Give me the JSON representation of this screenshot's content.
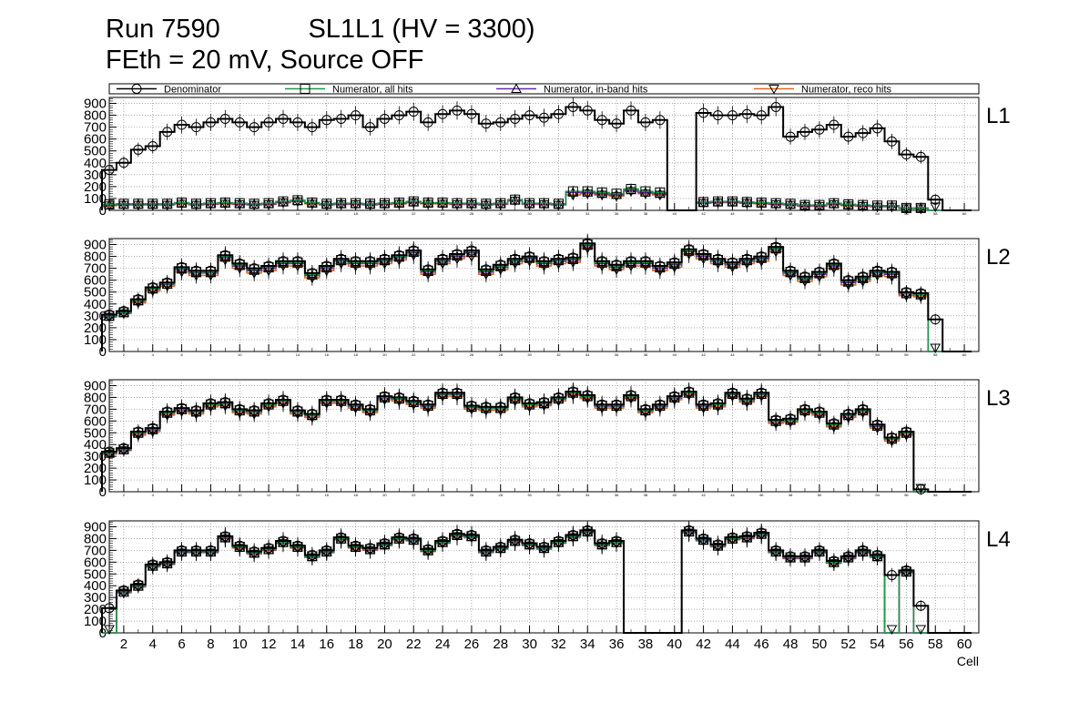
{
  "title_line1": "Run 7590            SL1L1 (HV = 3300)",
  "title_line2": "FEth = 20 mV, Source OFF",
  "chart_data": {
    "type": "line",
    "x_label": "Cell",
    "y_range": [
      0,
      950
    ],
    "x_range": [
      1,
      61
    ],
    "y_ticks": [
      0,
      100,
      200,
      300,
      400,
      500,
      600,
      700,
      800,
      900
    ],
    "x_ticks": [
      2,
      4,
      6,
      8,
      10,
      12,
      14,
      16,
      18,
      20,
      22,
      24,
      26,
      28,
      30,
      32,
      34,
      36,
      38,
      40,
      42,
      44,
      46,
      48,
      50,
      52,
      54,
      56,
      58,
      60
    ],
    "series_legend": [
      {
        "name": "Denominator",
        "color": "#000000",
        "marker": "circle"
      },
      {
        "name": "Numerator, all hits",
        "color": "#1a9a4a",
        "marker": "square"
      },
      {
        "name": "Numerator, in-band hits",
        "color": "#6a2ab0",
        "marker": "triangle-up"
      },
      {
        "name": "Numerator, reco hits",
        "color": "#e06a1f",
        "marker": "triangle-down"
      }
    ],
    "panels": [
      {
        "label": "L1",
        "denominator": [
          340,
          400,
          510,
          540,
          660,
          720,
          700,
          740,
          770,
          740,
          700,
          740,
          770,
          740,
          700,
          760,
          770,
          800,
          700,
          770,
          800,
          830,
          740,
          810,
          840,
          810,
          730,
          740,
          770,
          800,
          780,
          810,
          870,
          840,
          760,
          730,
          840,
          740,
          760,
          0,
          0,
          820,
          800,
          800,
          810,
          800,
          870,
          620,
          660,
          680,
          720,
          620,
          650,
          690,
          580,
          470,
          450,
          90,
          0,
          0
        ],
        "numerator_all": [
          50,
          55,
          55,
          55,
          55,
          65,
          55,
          60,
          65,
          60,
          55,
          60,
          75,
          85,
          65,
          55,
          60,
          60,
          55,
          60,
          65,
          75,
          65,
          65,
          60,
          60,
          55,
          60,
          90,
          60,
          60,
          55,
          160,
          160,
          150,
          140,
          180,
          160,
          150,
          0,
          0,
          70,
          75,
          75,
          70,
          65,
          60,
          55,
          45,
          45,
          60,
          50,
          45,
          40,
          40,
          20,
          20,
          0,
          0,
          0
        ],
        "numerator_inband": [
          45,
          50,
          50,
          50,
          50,
          60,
          50,
          55,
          60,
          55,
          50,
          55,
          70,
          80,
          60,
          50,
          55,
          55,
          50,
          55,
          60,
          70,
          60,
          60,
          55,
          55,
          50,
          55,
          85,
          55,
          55,
          50,
          150,
          150,
          140,
          130,
          170,
          150,
          140,
          0,
          0,
          65,
          70,
          70,
          65,
          60,
          55,
          50,
          40,
          40,
          55,
          45,
          40,
          35,
          35,
          18,
          18,
          0,
          0,
          0
        ],
        "numerator_reco": [
          40,
          45,
          45,
          45,
          45,
          55,
          45,
          50,
          55,
          50,
          45,
          50,
          65,
          75,
          55,
          45,
          50,
          50,
          45,
          50,
          55,
          65,
          55,
          55,
          50,
          50,
          45,
          50,
          80,
          50,
          50,
          45,
          130,
          140,
          130,
          120,
          160,
          140,
          130,
          0,
          0,
          60,
          65,
          65,
          60,
          55,
          50,
          45,
          35,
          35,
          50,
          40,
          35,
          30,
          30,
          15,
          15,
          0,
          0,
          0
        ]
      },
      {
        "label": "L2",
        "denominator": [
          310,
          340,
          440,
          540,
          580,
          710,
          680,
          680,
          810,
          740,
          700,
          720,
          760,
          760,
          660,
          720,
          780,
          760,
          760,
          780,
          810,
          850,
          690,
          780,
          820,
          850,
          690,
          730,
          780,
          800,
          760,
          780,
          790,
          910,
          760,
          730,
          760,
          760,
          720,
          750,
          860,
          820,
          780,
          750,
          780,
          800,
          880,
          680,
          630,
          670,
          740,
          600,
          630,
          680,
          670,
          500,
          490,
          270,
          0,
          0
        ],
        "numerator_all": [
          300,
          330,
          430,
          530,
          570,
          700,
          670,
          670,
          800,
          730,
          690,
          710,
          750,
          750,
          650,
          710,
          770,
          750,
          750,
          770,
          800,
          840,
          680,
          770,
          810,
          840,
          680,
          720,
          770,
          790,
          750,
          770,
          780,
          900,
          750,
          720,
          750,
          750,
          710,
          740,
          850,
          810,
          770,
          740,
          770,
          790,
          870,
          670,
          620,
          660,
          730,
          590,
          620,
          670,
          660,
          490,
          480,
          0,
          0,
          0
        ],
        "numerator_inband": [
          295,
          325,
          425,
          525,
          565,
          690,
          660,
          660,
          790,
          720,
          680,
          700,
          740,
          740,
          640,
          700,
          760,
          740,
          740,
          760,
          790,
          830,
          670,
          760,
          800,
          830,
          670,
          710,
          760,
          780,
          740,
          760,
          770,
          890,
          740,
          710,
          740,
          740,
          700,
          730,
          840,
          800,
          760,
          730,
          760,
          780,
          860,
          660,
          610,
          650,
          720,
          580,
          610,
          660,
          650,
          485,
          475,
          0,
          0,
          0
        ],
        "numerator_reco": [
          290,
          320,
          410,
          510,
          550,
          670,
          640,
          640,
          770,
          700,
          660,
          680,
          720,
          720,
          620,
          680,
          740,
          720,
          720,
          740,
          770,
          810,
          650,
          740,
          780,
          800,
          650,
          690,
          740,
          760,
          720,
          740,
          750,
          870,
          720,
          690,
          720,
          720,
          680,
          710,
          820,
          780,
          740,
          710,
          740,
          760,
          840,
          640,
          590,
          630,
          700,
          560,
          590,
          640,
          630,
          470,
          460,
          0,
          0,
          0
        ]
      },
      {
        "label": "L3",
        "denominator": [
          340,
          370,
          510,
          540,
          680,
          710,
          690,
          750,
          760,
          700,
          690,
          750,
          780,
          690,
          660,
          780,
          780,
          740,
          700,
          810,
          800,
          770,
          740,
          840,
          840,
          730,
          720,
          720,
          800,
          750,
          760,
          800,
          850,
          820,
          740,
          740,
          820,
          700,
          740,
          810,
          850,
          740,
          750,
          840,
          790,
          840,
          610,
          620,
          700,
          680,
          580,
          660,
          700,
          570,
          460,
          510,
          20,
          0,
          0,
          0
        ],
        "numerator_all": [
          330,
          360,
          500,
          530,
          670,
          700,
          680,
          740,
          750,
          690,
          680,
          740,
          770,
          680,
          650,
          770,
          770,
          730,
          690,
          800,
          790,
          760,
          730,
          830,
          830,
          720,
          710,
          710,
          790,
          740,
          750,
          790,
          840,
          810,
          730,
          730,
          810,
          690,
          730,
          800,
          840,
          730,
          740,
          830,
          780,
          830,
          600,
          610,
          690,
          670,
          570,
          650,
          690,
          560,
          450,
          500,
          0,
          0,
          0,
          0
        ],
        "numerator_inband": [
          325,
          355,
          495,
          525,
          665,
          695,
          675,
          735,
          745,
          685,
          675,
          735,
          765,
          675,
          645,
          765,
          765,
          725,
          685,
          795,
          785,
          755,
          725,
          825,
          825,
          715,
          705,
          705,
          785,
          735,
          745,
          785,
          835,
          805,
          725,
          725,
          805,
          685,
          725,
          795,
          835,
          725,
          735,
          825,
          775,
          825,
          595,
          605,
          685,
          665,
          565,
          645,
          685,
          555,
          445,
          495,
          0,
          0,
          0,
          0
        ],
        "numerator_reco": [
          320,
          350,
          480,
          510,
          650,
          680,
          660,
          720,
          730,
          670,
          660,
          720,
          750,
          660,
          630,
          750,
          750,
          710,
          670,
          780,
          770,
          740,
          710,
          810,
          810,
          700,
          690,
          690,
          770,
          720,
          730,
          770,
          820,
          790,
          710,
          710,
          790,
          670,
          710,
          780,
          820,
          710,
          720,
          810,
          760,
          810,
          580,
          590,
          670,
          650,
          550,
          630,
          670,
          540,
          430,
          480,
          0,
          0,
          0,
          0
        ],
        "numerator_reco_markers_extra": []
      },
      {
        "label": "L4",
        "denominator": [
          210,
          360,
          410,
          580,
          600,
          700,
          700,
          700,
          820,
          740,
          690,
          720,
          780,
          740,
          660,
          700,
          810,
          740,
          720,
          760,
          810,
          800,
          710,
          780,
          840,
          830,
          700,
          730,
          790,
          760,
          730,
          780,
          830,
          870,
          760,
          780,
          0,
          0,
          0,
          0,
          870,
          800,
          750,
          810,
          820,
          850,
          700,
          650,
          650,
          700,
          610,
          650,
          700,
          660,
          490,
          530,
          230,
          0,
          0,
          0
        ],
        "numerator_all": [
          0,
          350,
          400,
          570,
          590,
          690,
          690,
          690,
          810,
          730,
          680,
          710,
          770,
          730,
          650,
          690,
          800,
          730,
          710,
          750,
          800,
          790,
          700,
          770,
          830,
          820,
          690,
          720,
          780,
          750,
          720,
          770,
          820,
          860,
          750,
          770,
          0,
          0,
          0,
          0,
          860,
          790,
          740,
          800,
          810,
          840,
          690,
          640,
          640,
          690,
          600,
          640,
          690,
          650,
          0,
          520,
          0,
          0,
          0,
          0
        ],
        "numerator_inband": [
          0,
          345,
          395,
          565,
          585,
          685,
          685,
          685,
          805,
          725,
          675,
          705,
          765,
          725,
          645,
          685,
          795,
          725,
          705,
          745,
          795,
          785,
          695,
          765,
          825,
          815,
          685,
          715,
          775,
          745,
          715,
          765,
          815,
          855,
          745,
          765,
          0,
          0,
          0,
          0,
          855,
          785,
          735,
          795,
          805,
          835,
          685,
          635,
          635,
          685,
          595,
          635,
          685,
          645,
          0,
          515,
          0,
          0,
          0,
          0
        ],
        "numerator_reco": [
          0,
          340,
          390,
          560,
          580,
          680,
          680,
          680,
          800,
          720,
          670,
          700,
          760,
          720,
          640,
          680,
          790,
          720,
          700,
          740,
          790,
          780,
          690,
          760,
          820,
          810,
          680,
          710,
          770,
          740,
          710,
          760,
          810,
          850,
          740,
          760,
          0,
          0,
          0,
          0,
          850,
          780,
          730,
          790,
          800,
          830,
          680,
          630,
          630,
          680,
          590,
          630,
          680,
          640,
          0,
          510,
          0,
          0,
          0,
          0
        ]
      }
    ]
  }
}
